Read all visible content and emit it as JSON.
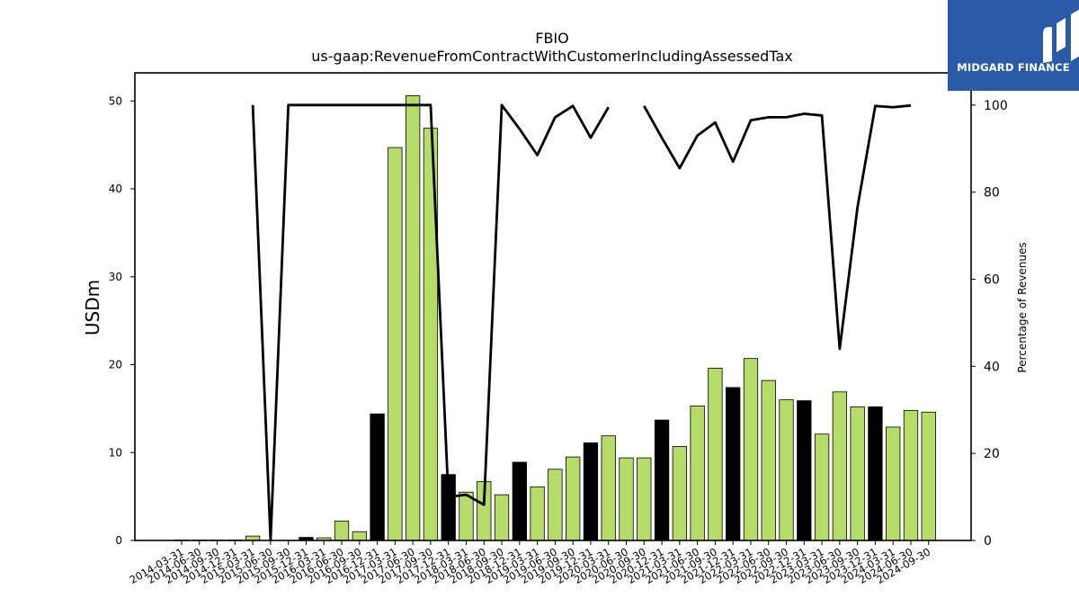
{
  "logo": {
    "text": "MIDGARD FINANCE",
    "icon": "midgard-m-icon",
    "bg_color": "#2b5aa8"
  },
  "chart_data": {
    "type": "bar",
    "title": "FBIO",
    "subtitle": "us-gaap:RevenueFromContractWithCustomerIncludingAssessedTax",
    "ylabel": "USDm",
    "y2label": "Percentage of Revenues",
    "ylim": [
      0,
      53.2
    ],
    "y2lim": [
      0,
      107.4
    ],
    "yticks": [
      0,
      10,
      20,
      30,
      40,
      50
    ],
    "y2ticks": [
      0,
      20,
      40,
      60,
      80,
      100
    ],
    "grid": false,
    "colors": {
      "quarter": "#b5dc68",
      "annual": "#000000",
      "line": "#000000"
    },
    "categories": [
      "2014-03-31",
      "2014-06-30",
      "2014-09-30",
      "2014-12-31",
      "2015-03-31",
      "2015-06-30",
      "2015-09-30",
      "2015-12-31",
      "2016-03-31",
      "2016-06-30",
      "2016-09-30",
      "2016-12-31",
      "2017-03-31",
      "2017-06-30",
      "2017-09-30",
      "2017-12-31",
      "2018-03-31",
      "2018-06-30",
      "2018-09-30",
      "2018-12-31",
      "2019-03-31",
      "2019-06-30",
      "2019-09-30",
      "2019-12-31",
      "2020-03-31",
      "2020-06-30",
      "2020-09-30",
      "2020-12-31",
      "2021-03-31",
      "2021-06-30",
      "2021-09-30",
      "2021-12-31",
      "2022-03-31",
      "2022-06-30",
      "2022-09-30",
      "2022-12-31",
      "2023-03-31",
      "2023-06-30",
      "2023-09-30",
      "2023-12-31",
      "2024-03-31",
      "2024-06-30",
      "2024-09-30"
    ],
    "series": [
      {
        "type": "bar",
        "values": [
          0.05,
          0.05,
          0.05,
          0.05,
          0.5,
          0,
          0,
          0.35,
          0.3,
          2.2,
          1.0,
          14.4,
          44.7,
          50.6,
          46.9,
          7.5,
          5.5,
          6.7,
          5.2,
          8.9,
          6.1,
          8.1,
          9.5,
          11.1,
          11.9,
          9.4,
          9.4,
          13.7,
          10.7,
          15.3,
          19.6,
          17.4,
          20.7,
          18.2,
          16.0,
          15.9,
          12.1,
          16.9,
          15.2,
          15.2,
          12.9,
          14.8,
          14.6
        ],
        "is_annual": [
          false,
          false,
          false,
          false,
          false,
          false,
          false,
          true,
          false,
          false,
          false,
          true,
          false,
          false,
          false,
          true,
          false,
          false,
          false,
          true,
          false,
          false,
          false,
          true,
          false,
          false,
          false,
          true,
          false,
          false,
          false,
          true,
          false,
          false,
          false,
          true,
          false,
          false,
          false,
          true,
          false,
          false,
          false
        ]
      },
      {
        "type": "line",
        "axis": "right",
        "values": [
          null,
          null,
          null,
          null,
          100,
          0,
          100,
          100,
          100,
          100,
          100,
          100,
          100,
          100,
          100,
          10,
          10.5,
          8.2,
          100,
          94.5,
          88.5,
          97.2,
          99.8,
          92.5,
          99.5,
          null,
          99.8,
          92.5,
          85.5,
          93,
          96,
          87,
          96.5,
          97.2,
          97.2,
          98,
          97.6,
          44,
          76.5,
          99.8,
          99.5,
          99.9,
          null
        ]
      }
    ]
  }
}
